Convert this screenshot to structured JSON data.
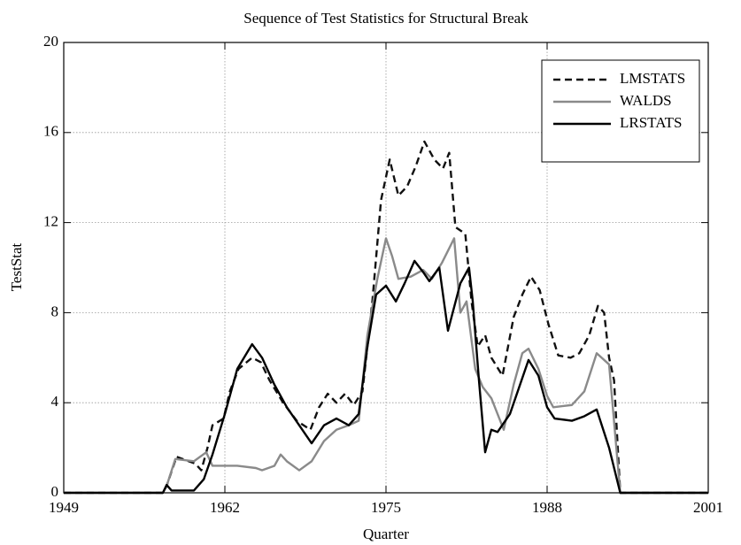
{
  "chart_data": {
    "type": "line",
    "title": "Sequence of Test Statistics for Structural Break",
    "x_label": "Quarter",
    "y_label": "TestStat",
    "xlim": [
      1949,
      2001
    ],
    "xticks": [
      1949,
      1962,
      1975,
      1988,
      2001
    ],
    "ylim": [
      0,
      20
    ],
    "yticks": [
      0,
      4,
      8,
      12,
      16,
      20
    ],
    "grid": true,
    "legend": "upper right",
    "series": [
      {
        "name": "LMSTATS",
        "color": "#111111",
        "linestyle": "dashed",
        "x": [
          1949,
          1957,
          1957.3,
          1958.1,
          1959.6,
          1960.1,
          1960.6,
          1961,
          1961.9,
          1962.4,
          1963.1,
          1964.2,
          1964.9,
          1965.6,
          1966.7,
          1967.8,
          1968.9,
          1969.6,
          1970.3,
          1971,
          1971.7,
          1972.4,
          1973.1,
          1973.5,
          1973.9,
          1974.6,
          1975.3,
          1976,
          1976.7,
          1977.4,
          1978.1,
          1978.9,
          1979.6,
          1980.1,
          1980.6,
          1981.4,
          1981.9,
          1982.4,
          1983,
          1983.5,
          1984.4,
          1985.3,
          1986,
          1986.7,
          1987.4,
          1988.1,
          1988.9,
          1989.9,
          1990.6,
          1991.4,
          1992.1,
          1992.6,
          1993,
          1993.4,
          1993.9,
          2001
        ],
        "values": [
          0,
          0,
          0.3,
          1.6,
          1.3,
          1.0,
          2.0,
          3.0,
          3.3,
          4.5,
          5.5,
          6.0,
          5.8,
          5.0,
          4.0,
          3.2,
          2.8,
          3.8,
          4.4,
          4.0,
          4.4,
          3.9,
          4.5,
          6.5,
          8.5,
          13.0,
          14.8,
          13.2,
          13.6,
          14.5,
          15.6,
          14.8,
          14.4,
          15.1,
          11.8,
          11.5,
          8.5,
          6.5,
          7.0,
          6.0,
          5.2,
          7.8,
          8.8,
          9.6,
          9.0,
          7.5,
          6.1,
          6.0,
          6.2,
          7.0,
          8.3,
          8.0,
          6.0,
          5.0,
          0,
          0
        ]
      },
      {
        "name": "WALDS",
        "color": "#8a8a8a",
        "linestyle": "solid",
        "x": [
          1949,
          1957,
          1957.3,
          1958,
          1959.5,
          1960.5,
          1961,
          1963,
          1964.5,
          1965,
          1966,
          1966.5,
          1967,
          1968,
          1969,
          1970,
          1971,
          1972,
          1972.8,
          1973.5,
          1974.3,
          1975,
          1975.5,
          1976,
          1977,
          1978,
          1978.7,
          1979.5,
          1980.5,
          1981,
          1981.5,
          1982.2,
          1982.8,
          1983.5,
          1984.5,
          1985.3,
          1986,
          1986.5,
          1987.3,
          1988,
          1988.5,
          1990,
          1991,
          1992,
          1993,
          1993.9,
          2001
        ],
        "values": [
          0,
          0,
          0.3,
          1.5,
          1.4,
          1.8,
          1.2,
          1.2,
          1.1,
          1.0,
          1.2,
          1.7,
          1.4,
          1.0,
          1.4,
          2.3,
          2.8,
          3.0,
          3.2,
          7.0,
          9.5,
          11.3,
          10.5,
          9.5,
          9.6,
          9.9,
          9.5,
          10.2,
          11.3,
          8.0,
          8.5,
          5.5,
          4.7,
          4.2,
          2.8,
          4.8,
          6.2,
          6.4,
          5.5,
          4.3,
          3.8,
          3.9,
          4.5,
          6.2,
          5.7,
          0,
          0
        ]
      },
      {
        "name": "LRSTATS",
        "color": "#000000",
        "linestyle": "solid",
        "x": [
          1949,
          1957,
          1957.3,
          1957.7,
          1958.5,
          1959.5,
          1960.3,
          1961,
          1962,
          1963,
          1964.2,
          1965,
          1966,
          1967,
          1968,
          1969,
          1970,
          1971,
          1972,
          1972.8,
          1973.5,
          1974.2,
          1975,
          1975.8,
          1976.5,
          1977.3,
          1978,
          1978.5,
          1979.3,
          1980,
          1981,
          1981.7,
          1982,
          1982.5,
          1983,
          1983.5,
          1984,
          1985,
          1986.5,
          1987.3,
          1988,
          1988.6,
          1990,
          1991,
          1992,
          1993,
          1993.9,
          2001
        ],
        "values": [
          0,
          0,
          0.35,
          0.1,
          0.1,
          0.1,
          0.6,
          1.7,
          3.5,
          5.5,
          6.6,
          6.0,
          4.8,
          3.8,
          3.0,
          2.2,
          3.0,
          3.3,
          3.0,
          3.5,
          6.5,
          8.8,
          9.2,
          8.5,
          9.3,
          10.3,
          9.8,
          9.4,
          10.0,
          7.2,
          9.3,
          10.0,
          8.5,
          5.0,
          1.8,
          2.8,
          2.7,
          3.5,
          5.9,
          5.2,
          3.8,
          3.3,
          3.2,
          3.4,
          3.7,
          2.0,
          0,
          0
        ]
      }
    ]
  }
}
